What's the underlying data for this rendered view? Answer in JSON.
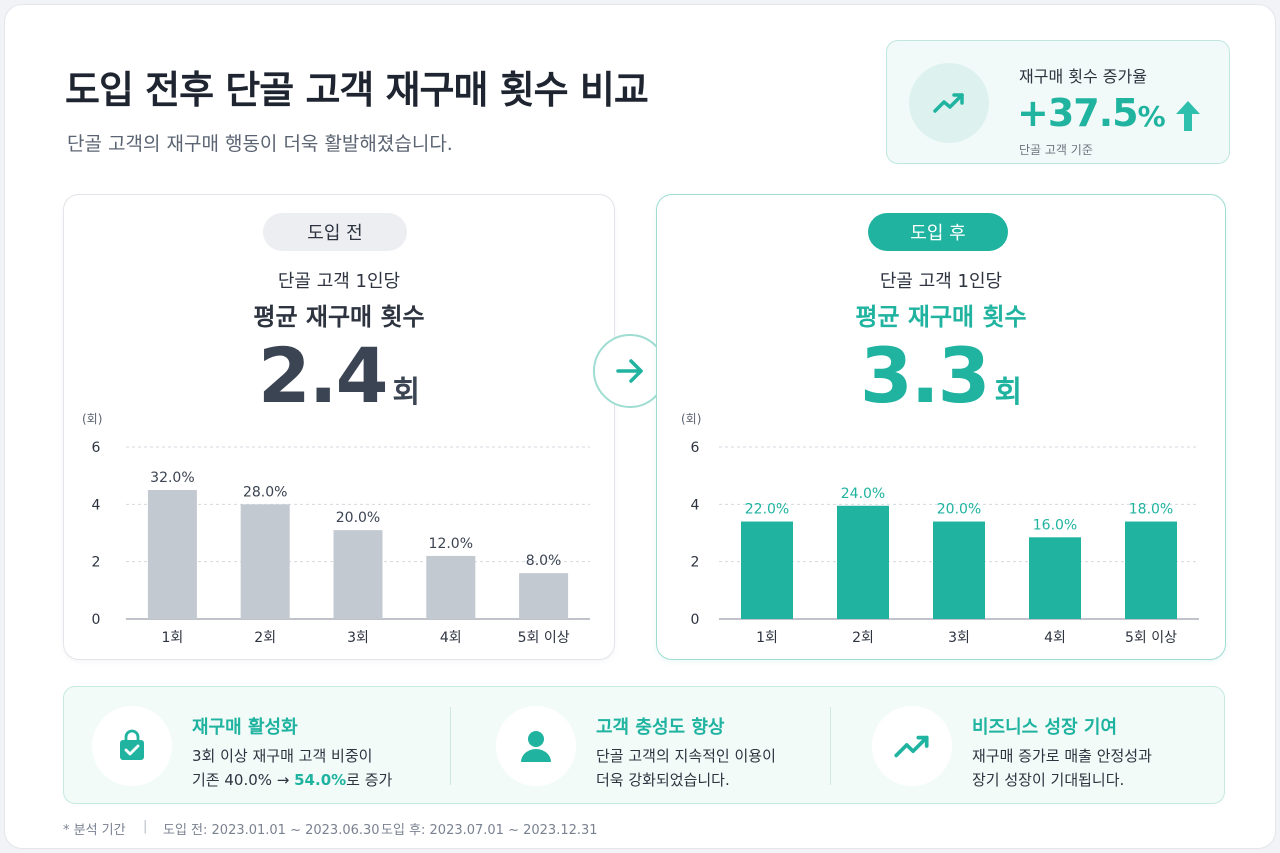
{
  "header": {
    "title": "도입 전후  단골 고객 재구매 횟수 비교",
    "subtitle": "단골 고객의 재구매 행동이 더욱 활발해졌습니다."
  },
  "kpi": {
    "label": "재구매 횟수 증가율",
    "value": "+37.5",
    "unit": "%",
    "note": "단골 고객 기준"
  },
  "panels": {
    "before": {
      "badge": "도입 전",
      "sub": "단골 고객 1인당",
      "head": "평균 재구매 횟수",
      "value": "2.4",
      "unit": "회"
    },
    "after": {
      "badge": "도입 후",
      "sub": "단골 고객 1인당",
      "head": "평균 재구매 횟수",
      "value": "3.3",
      "unit": "회"
    }
  },
  "chart_data": [
    {
      "type": "bar",
      "categories": [
        "1회",
        "2회",
        "3회",
        "4회",
        "5회 이상"
      ],
      "values": [
        4.5,
        4.0,
        3.1,
        2.2,
        1.6
      ],
      "labels": [
        "32.0%",
        "28.0%",
        "20.0%",
        "12.0%",
        "8.0%"
      ],
      "ylabel": "(회)",
      "yticks": [
        0,
        2,
        4,
        6
      ],
      "ylim": [
        0,
        6
      ],
      "color": "#c3c9d0",
      "grid": true
    },
    {
      "type": "bar",
      "categories": [
        "1회",
        "2회",
        "3회",
        "4회",
        "5회 이상"
      ],
      "values": [
        3.4,
        3.95,
        3.4,
        2.85,
        3.4
      ],
      "labels": [
        "22.0%",
        "24.0%",
        "20.0%",
        "16.0%",
        "18.0%"
      ],
      "ylabel": "(회)",
      "yticks": [
        0,
        2,
        4,
        6
      ],
      "ylim": [
        0,
        6
      ],
      "color": "#1fb3a0",
      "grid": true
    }
  ],
  "features": [
    {
      "icon": "shopping-bag-check-icon",
      "title": "재구매 활성화",
      "line1": "3회 이상 재구매 고객 비중이",
      "line2_pre": "기존 40.0%  →  ",
      "line2_hl": "54.0%",
      "line2_post": "로 증가"
    },
    {
      "icon": "user-icon",
      "title": "고객 충성도 향상",
      "line1": "단골 고객의 지속적인 이용이",
      "line2": "더욱 강화되었습니다."
    },
    {
      "icon": "trend-up-icon",
      "title": "비즈니스 성장 기여",
      "line1": "재구매 증가로 매출 안정성과",
      "line2": "장기 성장이 기대됩니다."
    }
  ],
  "footer": {
    "label": "* 분석 기간",
    "sep": "|",
    "before": "도입 전: 2023.01.01 ~ 2023.06.30",
    "after": "도입 후: 2023.07.01 ~ 2023.12.31"
  },
  "colors": {
    "accent": "#1fb3a0",
    "before_bar": "#c3c9d0"
  }
}
